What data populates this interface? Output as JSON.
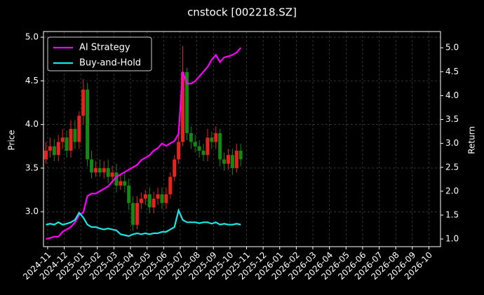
{
  "chart_data": {
    "type": "candlestick",
    "title": "cnstock [002218.SZ]",
    "ylabel": "Price",
    "y2label": "Return",
    "x": [
      -0.1,
      0.15,
      0.4,
      0.65,
      0.9,
      1.15,
      1.4,
      1.65,
      1.9,
      2.15,
      2.4,
      2.65,
      2.9,
      3.15,
      3.4,
      3.65,
      3.9,
      4.15,
      4.4,
      4.65,
      4.9,
      5.15,
      5.4,
      5.65,
      5.9,
      6.15,
      6.4,
      6.65,
      6.9,
      7.15,
      7.4,
      7.65,
      7.9,
      8.15,
      8.4,
      8.65,
      8.9,
      9.15,
      9.4,
      9.65,
      9.9,
      10.15,
      10.4,
      10.65,
      10.9,
      11.15,
      11.4,
      11.65
    ],
    "open": [
      3.6,
      3.7,
      3.75,
      3.65,
      3.8,
      3.85,
      3.7,
      3.95,
      3.8,
      4.1,
      4.4,
      3.6,
      3.45,
      3.5,
      3.45,
      3.5,
      3.4,
      3.45,
      3.3,
      3.35,
      3.3,
      3.1,
      2.85,
      3.1,
      3.15,
      3.2,
      3.05,
      3.15,
      3.2,
      3.1,
      3.2,
      3.4,
      3.6,
      3.8,
      4.6,
      3.9,
      3.8,
      3.75,
      3.7,
      3.65,
      3.85,
      3.8,
      3.9,
      3.6,
      3.55,
      3.65,
      3.5,
      3.7
    ],
    "high": [
      3.8,
      3.85,
      3.83,
      3.88,
      3.95,
      3.93,
      4.05,
      4.05,
      4.15,
      4.52,
      4.48,
      3.7,
      3.58,
      3.6,
      3.58,
      3.6,
      3.53,
      3.55,
      3.42,
      3.45,
      3.38,
      3.18,
      3.18,
      3.22,
      3.25,
      3.28,
      3.23,
      3.28,
      3.28,
      3.28,
      3.45,
      3.65,
      3.9,
      4.9,
      4.65,
      3.98,
      3.88,
      3.82,
      3.78,
      3.95,
      3.92,
      3.98,
      3.95,
      3.68,
      3.72,
      3.72,
      3.78,
      3.78
    ],
    "low": [
      3.55,
      3.62,
      3.58,
      3.58,
      3.72,
      3.62,
      3.62,
      3.72,
      3.72,
      4.0,
      3.52,
      3.38,
      3.4,
      3.4,
      3.38,
      3.33,
      3.33,
      3.22,
      3.25,
      3.22,
      3.02,
      2.78,
      2.8,
      3.03,
      3.08,
      2.98,
      2.98,
      3.08,
      3.03,
      3.03,
      3.15,
      3.35,
      3.55,
      3.75,
      3.82,
      3.72,
      3.68,
      3.62,
      3.58,
      3.58,
      3.72,
      3.72,
      3.52,
      3.47,
      3.48,
      3.42,
      3.45,
      3.52
    ],
    "close": [
      3.7,
      3.75,
      3.65,
      3.8,
      3.85,
      3.7,
      3.95,
      3.8,
      4.1,
      4.4,
      3.6,
      3.45,
      3.5,
      3.45,
      3.5,
      3.4,
      3.45,
      3.3,
      3.35,
      3.3,
      3.1,
      2.85,
      3.1,
      3.15,
      3.2,
      3.05,
      3.15,
      3.2,
      3.1,
      3.2,
      3.4,
      3.6,
      3.8,
      4.6,
      3.9,
      3.8,
      3.75,
      3.7,
      3.65,
      3.85,
      3.8,
      3.9,
      3.6,
      3.55,
      3.65,
      3.5,
      3.7,
      3.6
    ],
    "up_color": "#e8231f",
    "down_color": "#128a12",
    "series": [
      {
        "name": "AI Strategy",
        "color": "#ff00ff",
        "axis": "y2",
        "values": [
          1.0,
          1.02,
          1.05,
          1.05,
          1.15,
          1.2,
          1.25,
          1.35,
          1.5,
          1.55,
          1.9,
          1.95,
          1.95,
          2.0,
          2.05,
          2.1,
          2.2,
          2.3,
          2.35,
          2.4,
          2.45,
          2.5,
          2.55,
          2.65,
          2.7,
          2.75,
          2.85,
          2.9,
          3.0,
          2.95,
          3.0,
          3.05,
          3.2,
          4.5,
          4.25,
          4.25,
          4.3,
          4.4,
          4.5,
          4.6,
          4.75,
          4.85,
          4.7,
          4.8,
          4.82,
          4.85,
          4.9,
          5.0
        ]
      },
      {
        "name": "Buy-and-Hold",
        "color": "#19e6e6",
        "axis": "y2",
        "values": [
          1.3,
          1.32,
          1.3,
          1.35,
          1.3,
          1.32,
          1.35,
          1.4,
          1.55,
          1.45,
          1.3,
          1.25,
          1.25,
          1.22,
          1.2,
          1.22,
          1.2,
          1.18,
          1.1,
          1.08,
          1.06,
          1.1,
          1.12,
          1.1,
          1.12,
          1.1,
          1.12,
          1.12,
          1.15,
          1.15,
          1.2,
          1.25,
          1.6,
          1.4,
          1.35,
          1.35,
          1.35,
          1.33,
          1.35,
          1.35,
          1.32,
          1.35,
          1.3,
          1.32,
          1.3,
          1.3,
          1.32,
          1.3
        ]
      }
    ],
    "xlim": [
      -0.25,
      23.7
    ],
    "xticks": [
      {
        "value": 0,
        "label": "2024-11"
      },
      {
        "value": 1,
        "label": "2024-12"
      },
      {
        "value": 2,
        "label": "2025-01"
      },
      {
        "value": 3,
        "label": "2025-02"
      },
      {
        "value": 4,
        "label": "2025-03"
      },
      {
        "value": 5,
        "label": "2025-04"
      },
      {
        "value": 6,
        "label": "2025-05"
      },
      {
        "value": 7,
        "label": "2025-06"
      },
      {
        "value": 8,
        "label": "2025-07"
      },
      {
        "value": 9,
        "label": "2025-08"
      },
      {
        "value": 10,
        "label": "2025-09"
      },
      {
        "value": 11,
        "label": "2025-10"
      },
      {
        "value": 12,
        "label": "2025-11"
      },
      {
        "value": 13,
        "label": "2025-12"
      },
      {
        "value": 14,
        "label": "2026-01"
      },
      {
        "value": 15,
        "label": "2026-02"
      },
      {
        "value": 16,
        "label": "2026-03"
      },
      {
        "value": 17,
        "label": "2026-04"
      },
      {
        "value": 18,
        "label": "2026-05"
      },
      {
        "value": 19,
        "label": "2026-06"
      },
      {
        "value": 20,
        "label": "2026-07"
      },
      {
        "value": 21,
        "label": "2026-08"
      },
      {
        "value": 22,
        "label": "2026-09"
      },
      {
        "value": 23,
        "label": "2026-10"
      }
    ],
    "ylim": [
      2.6,
      5.065
    ],
    "yticks": [
      {
        "value": 3,
        "label": "3.0"
      },
      3.5,
      {
        "value": 4,
        "label": "4.0"
      },
      4.5,
      {
        "value": 5,
        "label": "5.0"
      }
    ],
    "y2lim": [
      0.84,
      5.34
    ],
    "y2ticks": [
      {
        "value": 1,
        "label": "1.0"
      },
      1.5,
      {
        "value": 2,
        "label": "2.0"
      },
      2.5,
      {
        "value": 3,
        "label": "3.0"
      },
      3.5,
      {
        "value": 4,
        "label": "4.0"
      },
      4.5,
      {
        "value": 5,
        "label": "5.0"
      }
    ],
    "grid": true,
    "legend": "upper left"
  }
}
